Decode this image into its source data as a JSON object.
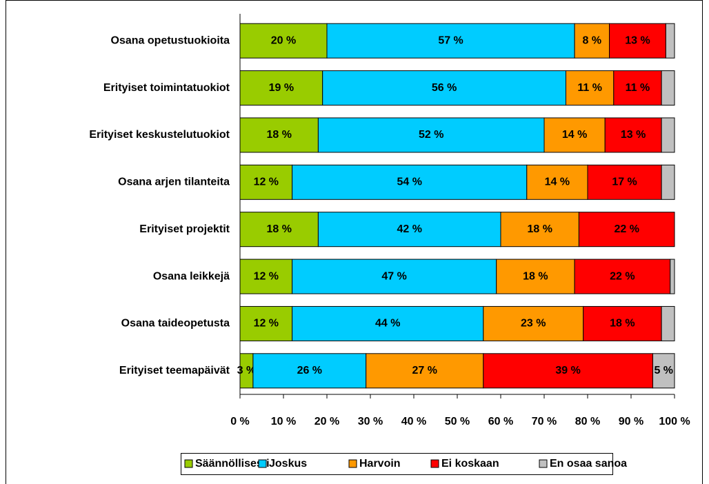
{
  "chart_data": {
    "type": "stacked-bar-horizontal",
    "categories": [
      "Osana opetustuokioita",
      "Erityiset toimintatuokiot",
      "Erityiset keskustelutuokiot",
      "Osana arjen tilanteita",
      "Erityiset projektit",
      "Osana leikkejä",
      "Osana taideopetusta",
      "Erityiset teemapäivät"
    ],
    "series": [
      {
        "name": "Säännöllisesti",
        "color": "#99cc00",
        "values": [
          20,
          19,
          18,
          12,
          18,
          12,
          12,
          3
        ],
        "value_labels": [
          "20 %",
          "19 %",
          "18 %",
          "12 %",
          "18 %",
          "12 %",
          "12 %",
          "3 %"
        ]
      },
      {
        "name": "Joskus",
        "color": "#00ccff",
        "values": [
          57,
          56,
          52,
          54,
          42,
          47,
          44,
          26
        ],
        "value_labels": [
          "57 %",
          "56 %",
          "52 %",
          "54 %",
          "42 %",
          "47 %",
          "44 %",
          "26 %"
        ]
      },
      {
        "name": "Harvoin",
        "color": "#ff9900",
        "values": [
          8,
          11,
          14,
          14,
          18,
          18,
          23,
          27
        ],
        "value_labels": [
          "8 %",
          "11 %",
          "14 %",
          "14 %",
          "18 %",
          "18 %",
          "23 %",
          "27 %"
        ]
      },
      {
        "name": "Ei koskaan",
        "color": "#ff0000",
        "values": [
          13,
          11,
          13,
          17,
          22,
          22,
          18,
          39
        ],
        "value_labels": [
          "13 %",
          "11 %",
          "13 %",
          "17 %",
          "22 %",
          "22 %",
          "18 %",
          "39 %"
        ]
      },
      {
        "name": "En osaa sanoa",
        "color": "#c0c0c0",
        "values": [
          2,
          3,
          3,
          3,
          0,
          1,
          3,
          5
        ],
        "value_labels": [
          null,
          null,
          null,
          null,
          null,
          null,
          null,
          "5 %"
        ]
      }
    ],
    "xlim": [
      0,
      100
    ],
    "xticks": [
      {
        "value": 0,
        "label": "0 %"
      },
      {
        "value": 10,
        "label": "10 %"
      },
      {
        "value": 20,
        "label": "20 %"
      },
      {
        "value": 30,
        "label": "30 %"
      },
      {
        "value": 40,
        "label": "40 %"
      },
      {
        "value": 50,
        "label": "50 %"
      },
      {
        "value": 60,
        "label": "60 %"
      },
      {
        "value": 70,
        "label": "70 %"
      },
      {
        "value": 80,
        "label": "80 %"
      },
      {
        "value": 90,
        "label": "90 %"
      },
      {
        "value": 100,
        "label": "100 %"
      }
    ],
    "legend": "bottom"
  }
}
